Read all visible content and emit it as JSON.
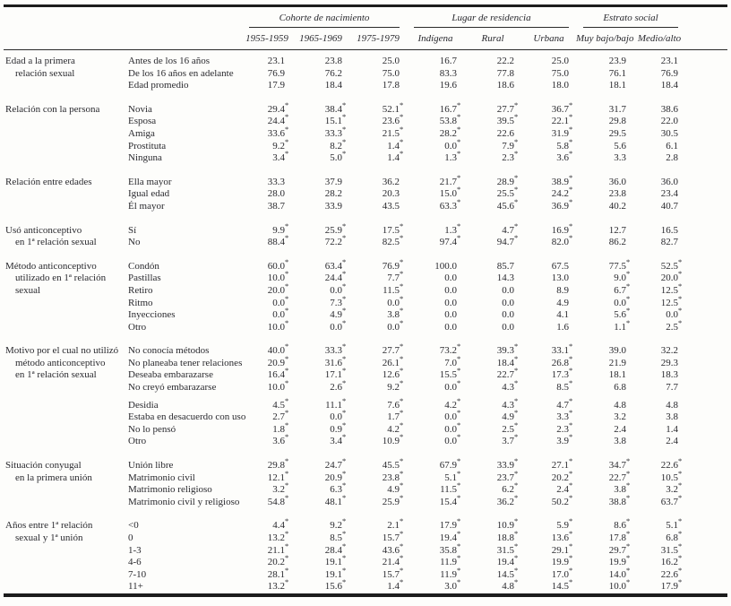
{
  "table": {
    "column_groups": [
      {
        "label": "Cohorte de nacimiento",
        "columns": [
          "1955-1959",
          "1965-1969",
          "1975-1979"
        ]
      },
      {
        "label": "Lugar de residencia",
        "columns": [
          "Indígena",
          "Rural",
          "Urbana"
        ]
      },
      {
        "label": "Estrato social",
        "columns": [
          "Muy bajo/bajo",
          "Medio/alto"
        ]
      }
    ],
    "significance_marker": "*",
    "sections": [
      {
        "label_lines": [
          "Edad a la primera",
          "relación sexual"
        ],
        "rows": [
          {
            "label": "Antes de los 16 años",
            "values": [
              "23.1",
              "23.8",
              "25.0",
              "16.7",
              "22.2",
              "25.0",
              "23.9",
              "23.1"
            ]
          },
          {
            "label": "De los 16 años en adelante",
            "values": [
              "76.9",
              "76.2",
              "75.0",
              "83.3",
              "77.8",
              "75.0",
              "76.1",
              "76.9"
            ]
          },
          {
            "label": "Edad promedio",
            "values": [
              "17.9",
              "18.4",
              "17.8",
              "19.6",
              "18.6",
              "18.0",
              "18.1",
              "18.4"
            ]
          }
        ]
      },
      {
        "label_lines": [
          "Relación con la persona"
        ],
        "rows": [
          {
            "label": "Novia",
            "values": [
              "29.4*",
              "38.4*",
              "52.1*",
              "16.7*",
              "27.7*",
              "36.7*",
              "31.7",
              "38.6"
            ]
          },
          {
            "label": "Esposa",
            "values": [
              "24.4*",
              "15.1*",
              "23.6*",
              "53.8*",
              "39.5*",
              "22.1*",
              "29.8",
              "22.0"
            ]
          },
          {
            "label": "Amiga",
            "values": [
              "33.6*",
              "33.3*",
              "21.5*",
              "28.2*",
              "22.6",
              "31.9*",
              "29.5",
              "30.5"
            ]
          },
          {
            "label": "Prostituta",
            "values": [
              "9.2*",
              "8.2*",
              "1.4*",
              "0.0*",
              "7.9*",
              "5.8*",
              "5.6",
              "6.1"
            ]
          },
          {
            "label": "Ninguna",
            "values": [
              "3.4*",
              "5.0*",
              "1.4*",
              "1.3*",
              "2.3*",
              "3.6*",
              "3.3",
              "2.8"
            ]
          }
        ]
      },
      {
        "label_lines": [
          "Relación entre edades"
        ],
        "rows": [
          {
            "label": "Ella mayor",
            "values": [
              "33.3",
              "37.9",
              "36.2",
              "21.7*",
              "28.9*",
              "38.9*",
              "36.0",
              "36.0"
            ]
          },
          {
            "label": "Igual edad",
            "values": [
              "28.0",
              "28.2",
              "20.3",
              "15.0*",
              "25.5*",
              "24.2*",
              "23.8",
              "23.4"
            ]
          },
          {
            "label": "Él mayor",
            "values": [
              "38.7",
              "33.9",
              "43.5",
              "63.3*",
              "45.6*",
              "36.9*",
              "40.2",
              "40.7"
            ]
          }
        ]
      },
      {
        "label_lines": [
          "Usó anticonceptivo",
          "en 1ª relación sexual"
        ],
        "rows": [
          {
            "label": "Sí",
            "values": [
              "9.9*",
              "25.9*",
              "17.5*",
              "1.3*",
              "4.7*",
              "16.9*",
              "12.7",
              "16.5"
            ]
          },
          {
            "label": "No",
            "values": [
              "88.4*",
              "72.2*",
              "82.5*",
              "97.4*",
              "94.7*",
              "82.0*",
              "86.2",
              "82.7"
            ]
          }
        ]
      },
      {
        "label_lines": [
          "Método anticonceptivo",
          "utilizado en 1ª relación",
          "sexual"
        ],
        "rows": [
          {
            "label": "Condón",
            "values": [
              "60.0*",
              "63.4*",
              "76.9*",
              "100.0",
              "85.7",
              "67.5",
              "77.5*",
              "52.5*"
            ]
          },
          {
            "label": "Pastillas",
            "values": [
              "10.0*",
              "24.4*",
              "7.7*",
              "0.0",
              "14.3",
              "13.0",
              "9.0*",
              "20.0*"
            ]
          },
          {
            "label": "Retiro",
            "values": [
              "20.0*",
              "0.0*",
              "11.5*",
              "0.0",
              "0.0",
              "8.9",
              "6.7*",
              "12.5*"
            ]
          },
          {
            "label": "Ritmo",
            "values": [
              "0.0*",
              "7.3*",
              "0.0*",
              "0.0",
              "0.0",
              "4.9",
              "0.0*",
              "12.5*"
            ]
          },
          {
            "label": "Inyecciones",
            "values": [
              "0.0*",
              "4.9*",
              "3.8*",
              "0.0",
              "0.0",
              "4.1",
              "5.6*",
              "0.0*"
            ]
          },
          {
            "label": "Otro",
            "values": [
              "10.0*",
              "0.0*",
              "0.0*",
              "0.0",
              "0.0",
              "1.6",
              "1.1*",
              "2.5*"
            ]
          }
        ]
      },
      {
        "label_lines": [
          "Motivo por el cual no utilizó",
          "método anticonceptivo",
          "en 1ª relación sexual"
        ],
        "gap_after_row": 3,
        "rows": [
          {
            "label": "No conocía métodos",
            "values": [
              "40.0*",
              "33.3*",
              "27.7*",
              "73.2*",
              "39.3*",
              "33.1*",
              "39.0",
              "32.2"
            ]
          },
          {
            "label": "No planeaba tener relaciones",
            "values": [
              "20.9*",
              "31.6*",
              "26.1*",
              "7.0*",
              "18.4*",
              "26.8*",
              "21.9",
              "29.3"
            ]
          },
          {
            "label": "Deseaba embarazarse",
            "values": [
              "16.4*",
              "17.1*",
              "12.6*",
              "15.5*",
              "22.7*",
              "17.3*",
              "18.1",
              "18.3"
            ]
          },
          {
            "label": "No creyó embarazarse",
            "values": [
              "10.0*",
              "2.6*",
              "9.2*",
              "0.0*",
              "4.3*",
              "8.5*",
              "6.8",
              "7.7"
            ]
          },
          {
            "label": "Desidia",
            "values": [
              "4.5*",
              "11.1*",
              "7.6*",
              "4.2*",
              "4.3*",
              "4.7*",
              "4.8",
              "4.8"
            ]
          },
          {
            "label": "Estaba en desacuerdo con uso",
            "values": [
              "2.7*",
              "0.0*",
              "1.7*",
              "0.0*",
              "4.9*",
              "3.3*",
              "3.2",
              "3.8"
            ]
          },
          {
            "label": "No lo pensó",
            "values": [
              "1.8*",
              "0.9*",
              "4.2*",
              "0.0*",
              "2.5*",
              "2.3*",
              "2.4",
              "1.4"
            ]
          },
          {
            "label": "Otro",
            "values": [
              "3.6*",
              "3.4*",
              "10.9*",
              "0.0*",
              "3.7*",
              "3.9*",
              "3.8",
              "2.4"
            ]
          }
        ]
      },
      {
        "label_lines": [
          "Situación conyugal",
          "en la primera unión"
        ],
        "rows": [
          {
            "label": "Unión libre",
            "values": [
              "29.8*",
              "24.7*",
              "45.5*",
              "67.9*",
              "33.9*",
              "27.1*",
              "34.7*",
              "22.6*"
            ]
          },
          {
            "label": "Matrimonio civil",
            "values": [
              "12.1*",
              "20.9*",
              "23.8*",
              "5.1*",
              "23.7*",
              "20.2*",
              "22.7*",
              "10.5*"
            ]
          },
          {
            "label": "Matrimonio religioso",
            "values": [
              "3.2*",
              "6.3*",
              "4.9*",
              "11.5*",
              "6.2*",
              "2.4*",
              "3.8*",
              "3.2*"
            ]
          },
          {
            "label": "Matrimonio civil y religioso",
            "values": [
              "54.8*",
              "48.1*",
              "25.9*",
              "15.4*",
              "36.2*",
              "50.2*",
              "38.8*",
              "63.7*"
            ]
          }
        ]
      },
      {
        "label_lines": [
          "Años entre 1ª relación",
          "sexual y 1ª unión"
        ],
        "rows": [
          {
            "label": "<0",
            "values": [
              "4.4*",
              "9.2*",
              "2.1*",
              "17.9*",
              "10.9*",
              "5.9*",
              "8.6*",
              "5.1*"
            ]
          },
          {
            "label": "0",
            "values": [
              "13.2*",
              "8.5*",
              "15.7*",
              "19.4*",
              "18.8*",
              "13.6*",
              "17.8*",
              "6.8*"
            ]
          },
          {
            "label": "1-3",
            "values": [
              "21.1*",
              "28.4*",
              "43.6*",
              "35.8*",
              "31.5*",
              "29.1*",
              "29.7*",
              "31.5*"
            ]
          },
          {
            "label": "4-6",
            "values": [
              "20.2*",
              "19.1*",
              "21.4*",
              "11.9*",
              "19.4*",
              "19.9*",
              "19.9*",
              "16.2*"
            ]
          },
          {
            "label": "7-10",
            "values": [
              "28.1*",
              "19.1*",
              "15.7*",
              "11.9*",
              "14.5*",
              "17.0*",
              "14.0*",
              "22.6*"
            ]
          },
          {
            "label": "11+",
            "values": [
              "13.2*",
              "15.6*",
              "1.4*",
              "3.0*",
              "4.8*",
              "14.5*",
              "10.0*",
              "17.9*"
            ]
          }
        ]
      }
    ]
  },
  "colors": {
    "ink": "#29292e",
    "rule": "#1c1c1c",
    "background": "#fdfdfb"
  }
}
